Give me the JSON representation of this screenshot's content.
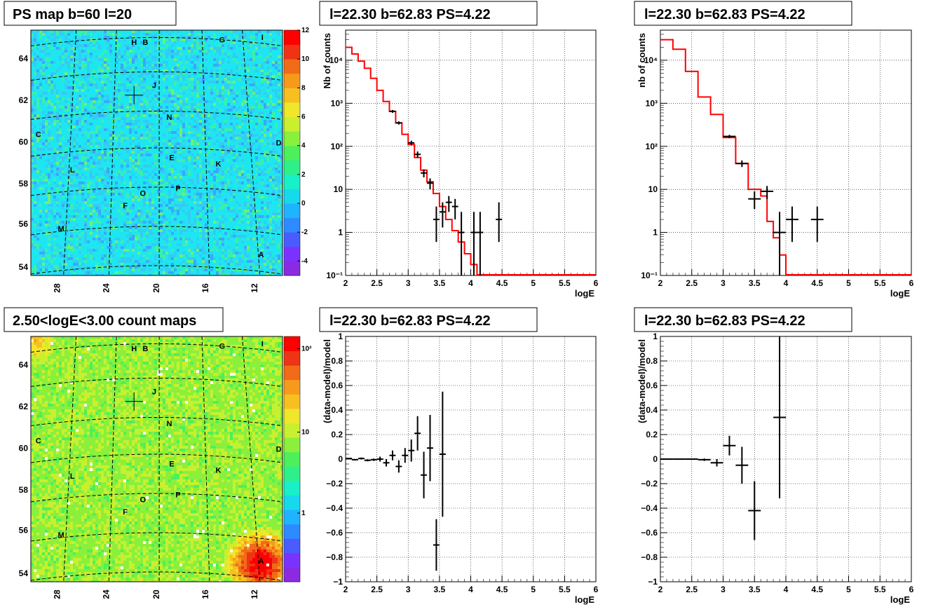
{
  "titles": {
    "map_top": "PS map b=60 l=20",
    "map_bottom": "2.50<logE<3.00 count maps",
    "spec_mid_top": "l=22.30 b=62.83 PS=4.22",
    "spec_right_top": "l=22.30 b=62.83 PS=4.22",
    "resid_mid": "l=22.30 b=62.83 PS=4.22",
    "resid_right": "l=22.30 b=62.83 PS=4.22"
  },
  "colors": {
    "model_line": "#ff0000",
    "data_marker": "#000000"
  },
  "chart_data": [
    {
      "type": "heatmap",
      "id": "map_top",
      "title": "PS map b=60 l=20",
      "x_ticks": [
        "28",
        "24",
        "20",
        "16",
        "12"
      ],
      "y_ticks": [
        "54",
        "56",
        "58",
        "60",
        "62",
        "64"
      ],
      "colorbar": {
        "ticks": [
          "-4",
          "-2",
          "0",
          "2",
          "4",
          "6",
          "8",
          "10",
          "12"
        ],
        "range": [
          -5,
          12
        ]
      },
      "source_labels": [
        "H",
        "B",
        "G",
        "I",
        "J",
        "N",
        "C",
        "D",
        "E",
        "K",
        "L",
        "P",
        "O",
        "F",
        "M",
        "A"
      ],
      "marker": {
        "l": 22.3,
        "b": 62.3
      }
    },
    {
      "type": "heatmap",
      "id": "map_bottom",
      "title": "2.50<logE<3.00 count maps",
      "x_ticks": [
        "28",
        "24",
        "20",
        "16",
        "12"
      ],
      "y_ticks": [
        "54",
        "56",
        "58",
        "60",
        "62",
        "64"
      ],
      "colorbar": {
        "ticks": [
          "1",
          "10",
          "10²"
        ],
        "log": true
      },
      "source_labels": [
        "H",
        "B",
        "G",
        "I",
        "J",
        "N",
        "C",
        "D",
        "E",
        "K",
        "L",
        "P",
        "O",
        "F",
        "M",
        "A"
      ],
      "marker": {
        "l": 22.3,
        "b": 62.3
      }
    },
    {
      "type": "line",
      "id": "spec_mid",
      "title": "l=22.30 b=62.83 PS=4.22",
      "xlabel": "logE",
      "ylabel": "Nb of counts",
      "xlim": [
        2,
        6
      ],
      "ylim": [
        0.1,
        50000
      ],
      "ylog": true,
      "x_ticks": [
        "2",
        "2.5",
        "3",
        "3.5",
        "4",
        "4.5",
        "5",
        "5.5",
        "6"
      ],
      "y_ticks": [
        "10⁻¹",
        "1",
        "10",
        "10²",
        "10³",
        "10⁴"
      ],
      "grid": true,
      "model_step": [
        [
          2.0,
          20000
        ],
        [
          2.1,
          14000
        ],
        [
          2.2,
          9500
        ],
        [
          2.3,
          6500
        ],
        [
          2.4,
          3800
        ],
        [
          2.5,
          2000
        ],
        [
          2.6,
          1100
        ],
        [
          2.7,
          650
        ],
        [
          2.8,
          350
        ],
        [
          2.9,
          190
        ],
        [
          3.0,
          110
        ],
        [
          3.1,
          55
        ],
        [
          3.2,
          28
        ],
        [
          3.3,
          15
        ],
        [
          3.4,
          8
        ],
        [
          3.5,
          4
        ],
        [
          3.6,
          2
        ],
        [
          3.7,
          1.1
        ],
        [
          3.8,
          0.6
        ],
        [
          3.9,
          0.32
        ],
        [
          4.0,
          0.18
        ],
        [
          4.1,
          0.1
        ]
      ],
      "points": [
        {
          "x": 2.75,
          "y": 650,
          "ylo": 600,
          "yhi": 700
        },
        {
          "x": 2.85,
          "y": 350,
          "ylo": 320,
          "yhi": 380
        },
        {
          "x": 3.05,
          "y": 120,
          "ylo": 105,
          "yhi": 135
        },
        {
          "x": 3.15,
          "y": 65,
          "ylo": 55,
          "yhi": 76
        },
        {
          "x": 3.25,
          "y": 24,
          "ylo": 19,
          "yhi": 29
        },
        {
          "x": 3.35,
          "y": 14,
          "ylo": 10,
          "yhi": 18
        },
        {
          "x": 3.45,
          "y": 2,
          "ylo": 0.6,
          "yhi": 4
        },
        {
          "x": 3.55,
          "y": 3,
          "ylo": 1.3,
          "yhi": 5
        },
        {
          "x": 3.65,
          "y": 5,
          "ylo": 3,
          "yhi": 7
        },
        {
          "x": 3.75,
          "y": 4,
          "ylo": 2,
          "yhi": 6
        },
        {
          "x": 3.85,
          "y": 1,
          "ylo": 0.1,
          "yhi": 3
        },
        {
          "x": 4.05,
          "y": 1,
          "ylo": 0.1,
          "yhi": 3
        },
        {
          "x": 4.15,
          "y": 1,
          "ylo": 0.1,
          "yhi": 3
        },
        {
          "x": 4.45,
          "y": 2,
          "ylo": 0.6,
          "yhi": 5
        }
      ]
    },
    {
      "type": "line",
      "id": "spec_right",
      "title": "l=22.30 b=62.83 PS=4.22",
      "xlabel": "logE",
      "ylabel": "nb of counts",
      "xlim": [
        2,
        6
      ],
      "ylim": [
        0.1,
        50000
      ],
      "ylog": true,
      "x_ticks": [
        "2",
        "2.5",
        "3",
        "3.5",
        "4",
        "4.5",
        "5",
        "5.5",
        "6"
      ],
      "y_ticks": [
        "10⁻¹",
        "1",
        "10",
        "10²",
        "10³",
        "10⁴"
      ],
      "grid": true,
      "model_step": [
        [
          2.0,
          30000
        ],
        [
          2.2,
          18000
        ],
        [
          2.4,
          5500
        ],
        [
          2.6,
          1400
        ],
        [
          2.8,
          550
        ],
        [
          3.0,
          160
        ],
        [
          3.2,
          40
        ],
        [
          3.4,
          10
        ],
        [
          3.6,
          7
        ],
        [
          3.7,
          1.8
        ],
        [
          3.8,
          0.75
        ],
        [
          3.9,
          0.3
        ],
        [
          4.0,
          0.1
        ]
      ],
      "points": [
        {
          "x": 3.1,
          "y": 170,
          "ylo": 155,
          "yhi": 185
        },
        {
          "x": 3.3,
          "y": 40,
          "ylo": 33,
          "yhi": 47
        },
        {
          "x": 3.5,
          "y": 6,
          "ylo": 3.5,
          "yhi": 9
        },
        {
          "x": 3.7,
          "y": 9,
          "ylo": 6,
          "yhi": 12
        },
        {
          "x": 3.9,
          "y": 1,
          "ylo": 0.1,
          "yhi": 3
        },
        {
          "x": 4.1,
          "y": 2,
          "ylo": 0.6,
          "yhi": 4
        },
        {
          "x": 4.5,
          "y": 2,
          "ylo": 0.6,
          "yhi": 4
        }
      ]
    },
    {
      "type": "scatter",
      "id": "resid_mid",
      "title": "l=22.30 b=62.83 PS=4.22",
      "xlabel": "logE",
      "ylabel": "(data-model)/model",
      "xlim": [
        2,
        6
      ],
      "ylim": [
        -1,
        1
      ],
      "x_ticks": [
        "2",
        "2.5",
        "3",
        "3.5",
        "4",
        "4.5",
        "5",
        "5.5",
        "6"
      ],
      "y_ticks": [
        "−1",
        "−0.8",
        "−0.6",
        "−0.4",
        "−0.2",
        "0",
        "0.2",
        "0.4",
        "0.6",
        "0.8",
        "1"
      ],
      "grid": true,
      "points": [
        {
          "x": 2.05,
          "y": 0.005,
          "err": 0.005
        },
        {
          "x": 2.15,
          "y": -0.005,
          "err": 0.005
        },
        {
          "x": 2.25,
          "y": 0.005,
          "err": 0.008
        },
        {
          "x": 2.35,
          "y": -0.01,
          "err": 0.008
        },
        {
          "x": 2.45,
          "y": -0.005,
          "err": 0.01
        },
        {
          "x": 2.55,
          "y": 0.0,
          "err": 0.02
        },
        {
          "x": 2.65,
          "y": -0.03,
          "err": 0.03
        },
        {
          "x": 2.75,
          "y": 0.03,
          "err": 0.04
        },
        {
          "x": 2.85,
          "y": -0.06,
          "err": 0.05
        },
        {
          "x": 2.95,
          "y": 0.03,
          "err": 0.06
        },
        {
          "x": 3.05,
          "y": 0.07,
          "err": 0.09
        },
        {
          "x": 3.15,
          "y": 0.21,
          "err": 0.14
        },
        {
          "x": 3.25,
          "y": -0.13,
          "err": 0.19
        },
        {
          "x": 3.35,
          "y": 0.09,
          "err": 0.27
        },
        {
          "x": 3.45,
          "y": -0.7,
          "err": 0.21
        },
        {
          "x": 3.55,
          "y": 0.04,
          "err": 0.51
        }
      ]
    },
    {
      "type": "scatter",
      "id": "resid_right",
      "title": "l=22.30 b=62.83 PS=4.22",
      "xlabel": "logE",
      "ylabel": "(data-model)/model",
      "xlim": [
        2,
        6
      ],
      "ylim": [
        -1,
        1
      ],
      "x_ticks": [
        "2",
        "2.5",
        "3",
        "3.5",
        "4",
        "4.5",
        "5",
        "5.5",
        "6"
      ],
      "y_ticks": [
        "−1",
        "−0.8",
        "−0.6",
        "−0.4",
        "−0.2",
        "0",
        "0.2",
        "0.4",
        "0.6",
        "0.8",
        "1"
      ],
      "grid": true,
      "points": [
        {
          "x": 2.1,
          "y": 0.0,
          "err": 0.004
        },
        {
          "x": 2.3,
          "y": 0.0,
          "err": 0.004
        },
        {
          "x": 2.5,
          "y": 0.0,
          "err": 0.006
        },
        {
          "x": 2.7,
          "y": -0.005,
          "err": 0.01
        },
        {
          "x": 2.9,
          "y": -0.03,
          "err": 0.03
        },
        {
          "x": 3.1,
          "y": 0.11,
          "err": 0.08
        },
        {
          "x": 3.3,
          "y": -0.05,
          "err": 0.15
        },
        {
          "x": 3.5,
          "y": -0.42,
          "err": 0.24
        },
        {
          "x": 3.9,
          "y": 0.34,
          "err": 0.66
        }
      ]
    }
  ]
}
